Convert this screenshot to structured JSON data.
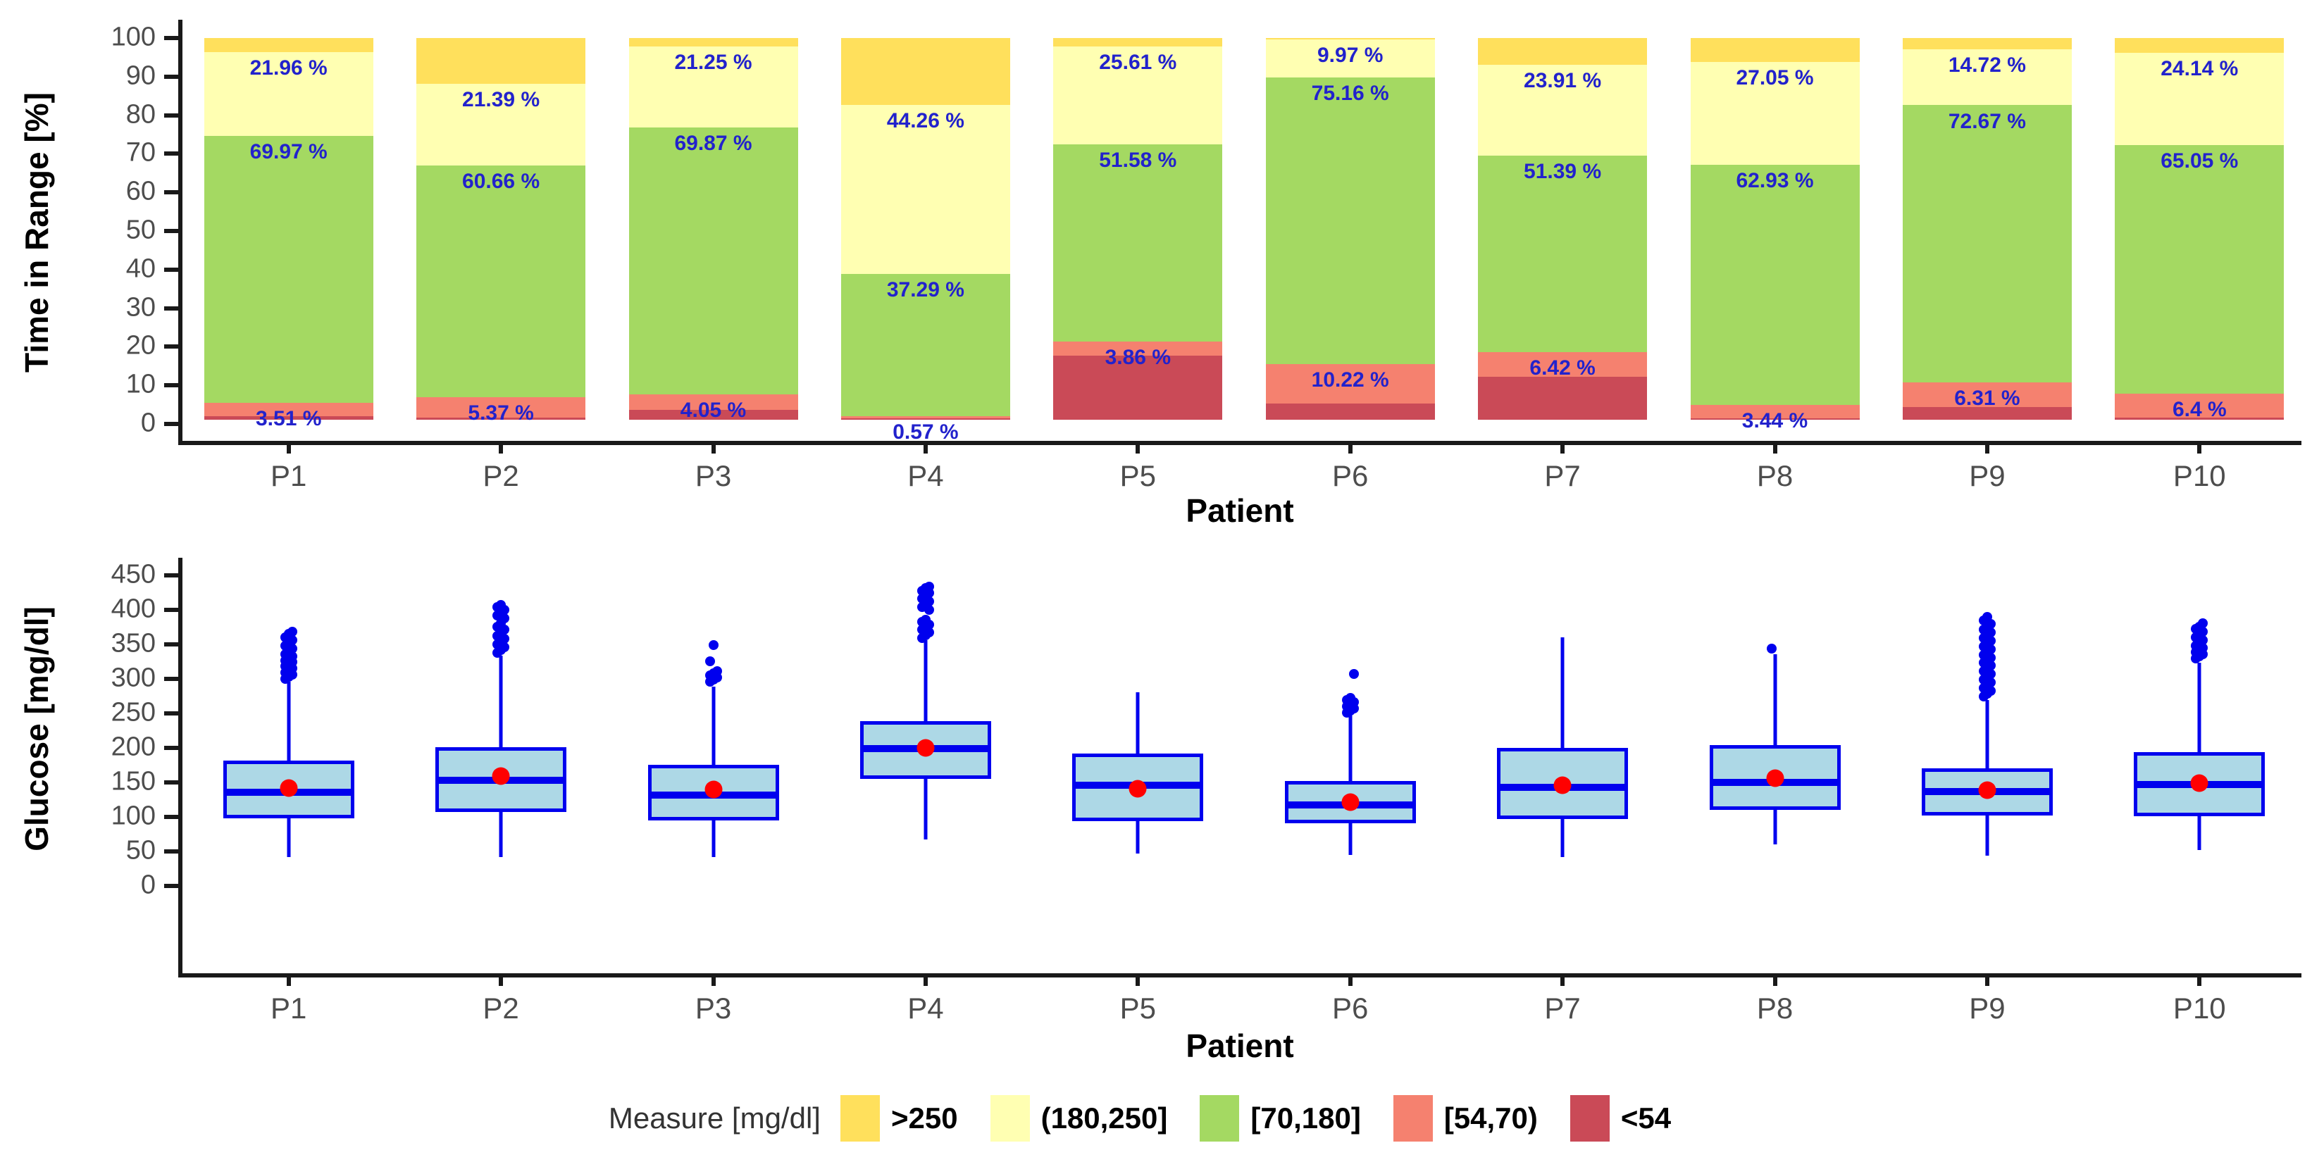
{
  "legend": {
    "title": "Measure [mg/dl]",
    "items": [
      {
        "label": ">250",
        "color": "#FFE05C"
      },
      {
        "label": "(180,250]",
        "color": "#FFFFB2"
      },
      {
        "label": "[70,180]",
        "color": "#A4D962"
      },
      {
        "label": "[54,70)",
        "color": "#F5816F"
      },
      {
        "label": "<54",
        "color": "#CA4A57"
      }
    ]
  },
  "chart_data": [
    {
      "type": "bar",
      "stacked": true,
      "title": "",
      "xlabel": "Patient",
      "ylabel": "Time in Range [%]",
      "ylim": [
        0,
        100
      ],
      "yticks": [
        0,
        10,
        20,
        30,
        40,
        50,
        60,
        70,
        80,
        90,
        100
      ],
      "grid": false,
      "legend_position": "bottom",
      "categories": [
        "P1",
        "P2",
        "P3",
        "P4",
        "P5",
        "P6",
        "P7",
        "P8",
        "P9",
        "P10"
      ],
      "label_color": "#2222CC",
      "series": [
        {
          "name": ">250",
          "color": "#FFE05C",
          "values": [
            3.7,
            12.08,
            2.2,
            17.6,
            2.25,
            0.35,
            6.98,
            6.2,
            2.9,
            3.91
          ],
          "labels": null
        },
        {
          "name": "(180,250]",
          "color": "#FFFFB2",
          "values": [
            21.96,
            21.39,
            21.25,
            44.26,
            25.61,
            9.97,
            23.91,
            27.05,
            14.72,
            24.14
          ],
          "labels": [
            "21.96 %",
            "21.39 %",
            "21.25 %",
            "44.26 %",
            "25.61 %",
            "9.97 %",
            "23.91 %",
            "27.05 %",
            "14.72 %",
            "24.14 %"
          ]
        },
        {
          "name": "[70,180]",
          "color": "#A4D962",
          "values": [
            69.97,
            60.66,
            69.87,
            37.29,
            51.58,
            75.16,
            51.39,
            62.93,
            72.67,
            65.05
          ],
          "labels": [
            "69.97 %",
            "60.66 %",
            "69.87 %",
            "37.29 %",
            "51.58 %",
            "75.16 %",
            "51.39 %",
            "62.93 %",
            "72.67 %",
            "65.05 %"
          ]
        },
        {
          "name": "[54,70)",
          "color": "#F5816F",
          "values": [
            3.51,
            5.37,
            4.05,
            0.57,
            3.86,
            10.22,
            6.42,
            3.44,
            6.31,
            6.4
          ],
          "labels": [
            "3.51 %",
            "5.37 %",
            "4.05 %",
            "0.57 %",
            "3.86 %",
            "10.22 %",
            "6.42 %",
            "3.44 %",
            "6.31 %",
            "6.4 %"
          ]
        },
        {
          "name": "<54",
          "color": "#CA4A57",
          "values": [
            0.86,
            0.5,
            2.63,
            0.28,
            16.7,
            4.3,
            11.3,
            0.38,
            3.4,
            0.5
          ],
          "labels": null
        }
      ]
    },
    {
      "type": "boxplot",
      "title": "",
      "xlabel": "Patient",
      "ylabel": "Glucose [mg/dl]",
      "ylim": [
        0,
        450
      ],
      "yticks": [
        0,
        50,
        100,
        150,
        200,
        250,
        300,
        350,
        400,
        450
      ],
      "grid": false,
      "box_fill": "#ADD8E6",
      "box_color": "#0000EE",
      "mean_color": "#FF0000",
      "categories": [
        "P1",
        "P2",
        "P3",
        "P4",
        "P5",
        "P6",
        "P7",
        "P8",
        "P9",
        "P10"
      ],
      "stats": [
        {
          "lo": 42,
          "q1": 98,
          "med": 136,
          "mean": 142,
          "q3": 182,
          "hi": 296
        },
        {
          "lo": 42,
          "q1": 107,
          "med": 153,
          "mean": 159,
          "q3": 201,
          "hi": 334
        },
        {
          "lo": 42,
          "q1": 95,
          "med": 132,
          "mean": 140,
          "q3": 176,
          "hi": 289
        },
        {
          "lo": 67,
          "q1": 155,
          "med": 199,
          "mean": 200,
          "q3": 239,
          "hi": 356
        },
        {
          "lo": 47,
          "q1": 94,
          "med": 146,
          "mean": 141,
          "q3": 192,
          "hi": 281
        },
        {
          "lo": 45,
          "q1": 91,
          "med": 117,
          "mean": 121,
          "q3": 152,
          "hi": 248
        },
        {
          "lo": 42,
          "q1": 97,
          "med": 143,
          "mean": 146,
          "q3": 200,
          "hi": 360
        },
        {
          "lo": 60,
          "q1": 110,
          "med": 150,
          "mean": 156,
          "q3": 204,
          "hi": 336
        },
        {
          "lo": 44,
          "q1": 102,
          "med": 137,
          "mean": 139,
          "q3": 170,
          "hi": 269
        },
        {
          "lo": 52,
          "q1": 101,
          "med": 147,
          "mean": 149,
          "q3": 194,
          "hi": 323
        }
      ],
      "outliers": [
        [
          300,
          303,
          306,
          309,
          312,
          315,
          318,
          321,
          324,
          327,
          330,
          333,
          336,
          340,
          344,
          348,
          352,
          356,
          360,
          365,
          368
        ],
        [
          338,
          342,
          346,
          350,
          354,
          358,
          362,
          366,
          371,
          376,
          381,
          388,
          392,
          396,
          400,
          404,
          407
        ],
        [
          296,
          299,
          302,
          305,
          308,
          311,
          326,
          349
        ],
        [
          359,
          363,
          367,
          371,
          375,
          379,
          383,
          386,
          400,
          404,
          408,
          412,
          416,
          420,
          424,
          428,
          432,
          434
        ],
        [],
        [
          251,
          254,
          257,
          260,
          263,
          266,
          269,
          272,
          307
        ],
        [],
        [
          344
        ],
        [
          275,
          279,
          283,
          287,
          291,
          295,
          299,
          303,
          307,
          311,
          315,
          319,
          323,
          327,
          331,
          335,
          339,
          343,
          347,
          351,
          355,
          359,
          363,
          367,
          371,
          375,
          380,
          385,
          390
        ],
        [
          330,
          333,
          336,
          339,
          342,
          345,
          348,
          352,
          356,
          360,
          364,
          368,
          372,
          376,
          381
        ]
      ]
    }
  ]
}
